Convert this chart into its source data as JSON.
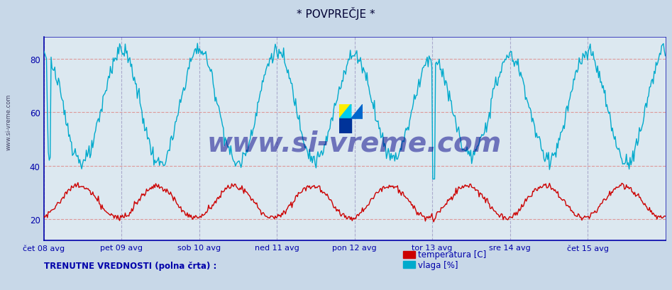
{
  "title": "* POVPREČJE *",
  "bg_color": "#c8d8e8",
  "plot_bg_color": "#dce8f0",
  "xlabel_color": "#0000aa",
  "ylabel_color": "#0000aa",
  "temp_color": "#cc0000",
  "vlaga_color": "#00aacc",
  "grid_color_h": "#dd9999",
  "grid_color_v": "#aaaacc",
  "x_ticks": [
    0,
    84,
    168,
    252,
    336,
    420,
    504,
    588
  ],
  "x_labels": [
    "čet 08 avg",
    "pet 09 avg",
    "sob 10 avg",
    "ned 11 avg",
    "pon 12 avg",
    "tor 13 avg",
    "sre 14 avg",
    "čet 15 avg"
  ],
  "y_ticks": [
    20,
    40,
    60,
    80
  ],
  "ylim": [
    12,
    88
  ],
  "xlim": [
    0,
    672
  ],
  "legend_label_temp": "temperatura [C]",
  "legend_label_vlaga": "vlaga [%]",
  "bottom_text": "TRENUTNE VREDNOSTI (polna črta) :",
  "watermark": "www.si-vreme.com",
  "sidebar_text": "www.si-vreme.com",
  "n_points": 672
}
